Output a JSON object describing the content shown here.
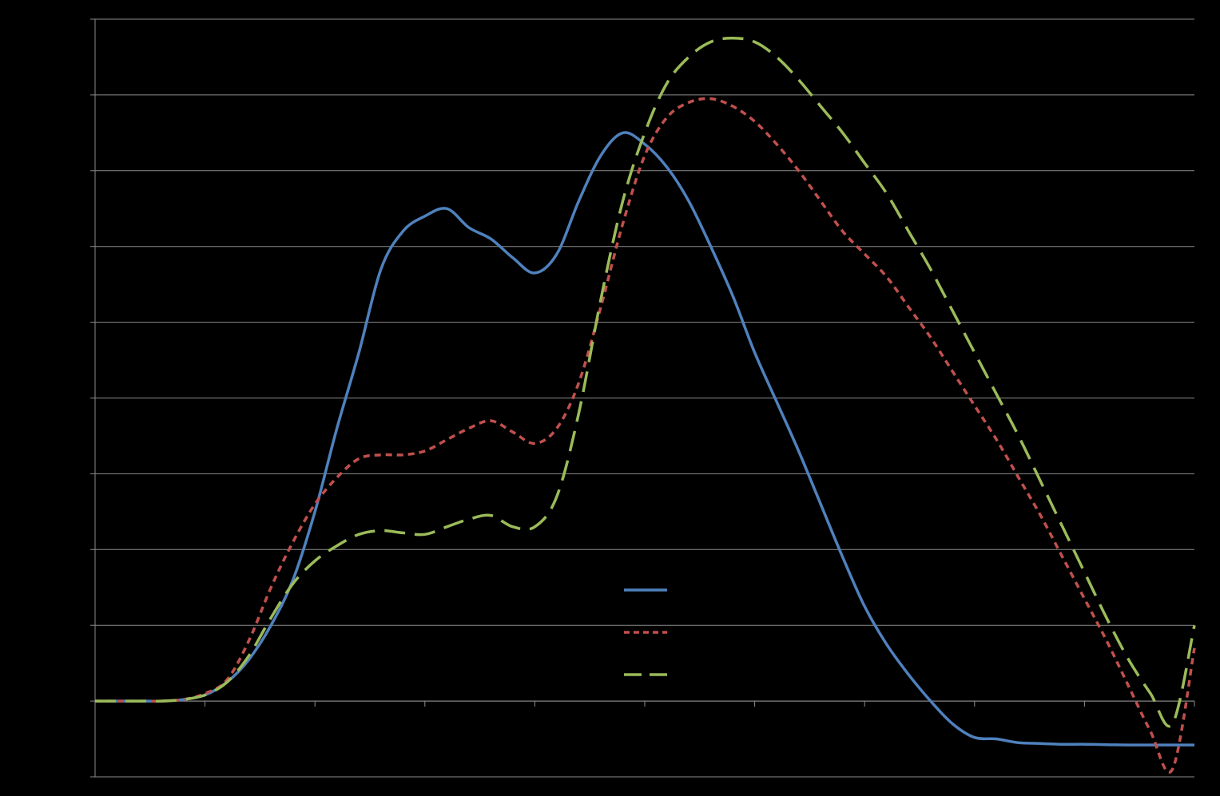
{
  "chart_data": {
    "type": "line",
    "title": "",
    "xlabel": "",
    "ylabel": "",
    "x": [
      0,
      5,
      10,
      15,
      20,
      25,
      30,
      35,
      40,
      45,
      50
    ],
    "xlim": [
      0,
      50
    ],
    "ylim": [
      -1,
      9
    ],
    "grid": true,
    "background": "#000000",
    "gridline_color": "#8c8c8c",
    "axis_color": "#8c8c8c",
    "legend_placement": "center-bottom",
    "series": [
      {
        "color": "#4f81bd",
        "dash": "solid",
        "points": [
          [
            0,
            0
          ],
          [
            1,
            0
          ],
          [
            2,
            0
          ],
          [
            3,
            0
          ],
          [
            4,
            0.02
          ],
          [
            5,
            0.08
          ],
          [
            6,
            0.25
          ],
          [
            7,
            0.55
          ],
          [
            8,
            1.0
          ],
          [
            9,
            1.6
          ],
          [
            10,
            2.5
          ],
          [
            11,
            3.6
          ],
          [
            12,
            4.6
          ],
          [
            13,
            5.7
          ],
          [
            14,
            6.2
          ],
          [
            15,
            6.4
          ],
          [
            16,
            6.5
          ],
          [
            17,
            6.25
          ],
          [
            18,
            6.1
          ],
          [
            19,
            5.85
          ],
          [
            20,
            5.65
          ],
          [
            21,
            5.9
          ],
          [
            22,
            6.6
          ],
          [
            23,
            7.2
          ],
          [
            24,
            7.5
          ],
          [
            25,
            7.35
          ],
          [
            26,
            7.05
          ],
          [
            27,
            6.6
          ],
          [
            28,
            6.0
          ],
          [
            29,
            5.35
          ],
          [
            30,
            4.6
          ],
          [
            31,
            3.95
          ],
          [
            32,
            3.3
          ],
          [
            33,
            2.6
          ],
          [
            34,
            1.9
          ],
          [
            35,
            1.25
          ],
          [
            36,
            0.75
          ],
          [
            37,
            0.35
          ],
          [
            38,
            0.0
          ],
          [
            39,
            -0.3
          ],
          [
            40,
            -0.48
          ],
          [
            41,
            -0.5
          ],
          [
            42,
            -0.55
          ],
          [
            43,
            -0.56
          ],
          [
            44,
            -0.57
          ],
          [
            45,
            -0.57
          ],
          [
            46,
            -0.575
          ],
          [
            47,
            -0.58
          ],
          [
            48,
            -0.58
          ],
          [
            49,
            -0.58
          ],
          [
            50,
            -0.58
          ]
        ]
      },
      {
        "color": "#c0504d",
        "dash": "short-dash",
        "points": [
          [
            0,
            0
          ],
          [
            1,
            0
          ],
          [
            2,
            0
          ],
          [
            3,
            0
          ],
          [
            4,
            0.02
          ],
          [
            5,
            0.1
          ],
          [
            6,
            0.28
          ],
          [
            7,
            0.8
          ],
          [
            8,
            1.5
          ],
          [
            9,
            2.1
          ],
          [
            10,
            2.6
          ],
          [
            11,
            2.95
          ],
          [
            12,
            3.2
          ],
          [
            13,
            3.25
          ],
          [
            14,
            3.25
          ],
          [
            15,
            3.3
          ],
          [
            16,
            3.45
          ],
          [
            17,
            3.6
          ],
          [
            18,
            3.7
          ],
          [
            19,
            3.55
          ],
          [
            20,
            3.4
          ],
          [
            21,
            3.6
          ],
          [
            22,
            4.2
          ],
          [
            23,
            5.2
          ],
          [
            24,
            6.3
          ],
          [
            25,
            7.2
          ],
          [
            26,
            7.7
          ],
          [
            27,
            7.9
          ],
          [
            28,
            7.95
          ],
          [
            29,
            7.85
          ],
          [
            30,
            7.65
          ],
          [
            31,
            7.35
          ],
          [
            32,
            7.0
          ],
          [
            33,
            6.6
          ],
          [
            34,
            6.2
          ],
          [
            35,
            5.9
          ],
          [
            36,
            5.6
          ],
          [
            37,
            5.2
          ],
          [
            38,
            4.8
          ],
          [
            39,
            4.35
          ],
          [
            40,
            3.9
          ],
          [
            41,
            3.45
          ],
          [
            42,
            2.95
          ],
          [
            43,
            2.45
          ],
          [
            44,
            1.9
          ],
          [
            45,
            1.35
          ],
          [
            46,
            0.8
          ],
          [
            47,
            0.2
          ],
          [
            48,
            -0.4
          ],
          [
            49,
            -0.9
          ],
          [
            50,
            0.7
          ]
        ]
      },
      {
        "color": "#9bbb59",
        "dash": "long-dash",
        "points": [
          [
            0,
            0
          ],
          [
            1,
            0
          ],
          [
            2,
            0
          ],
          [
            3,
            0
          ],
          [
            4,
            0.02
          ],
          [
            5,
            0.08
          ],
          [
            6,
            0.25
          ],
          [
            7,
            0.6
          ],
          [
            8,
            1.1
          ],
          [
            9,
            1.55
          ],
          [
            10,
            1.85
          ],
          [
            11,
            2.05
          ],
          [
            12,
            2.2
          ],
          [
            13,
            2.25
          ],
          [
            14,
            2.22
          ],
          [
            15,
            2.2
          ],
          [
            16,
            2.3
          ],
          [
            17,
            2.4
          ],
          [
            18,
            2.45
          ],
          [
            19,
            2.3
          ],
          [
            20,
            2.3
          ],
          [
            21,
            2.7
          ],
          [
            22,
            3.8
          ],
          [
            23,
            5.3
          ],
          [
            24,
            6.6
          ],
          [
            25,
            7.5
          ],
          [
            26,
            8.15
          ],
          [
            27,
            8.5
          ],
          [
            28,
            8.7
          ],
          [
            29,
            8.75
          ],
          [
            30,
            8.7
          ],
          [
            31,
            8.5
          ],
          [
            32,
            8.2
          ],
          [
            33,
            7.85
          ],
          [
            34,
            7.5
          ],
          [
            35,
            7.1
          ],
          [
            36,
            6.7
          ],
          [
            37,
            6.2
          ],
          [
            38,
            5.7
          ],
          [
            39,
            5.15
          ],
          [
            40,
            4.6
          ],
          [
            41,
            4.05
          ],
          [
            42,
            3.5
          ],
          [
            43,
            2.9
          ],
          [
            44,
            2.3
          ],
          [
            45,
            1.7
          ],
          [
            46,
            1.1
          ],
          [
            47,
            0.55
          ],
          [
            48,
            0.1
          ],
          [
            49,
            -0.3
          ],
          [
            50,
            1.0
          ]
        ]
      }
    ]
  }
}
